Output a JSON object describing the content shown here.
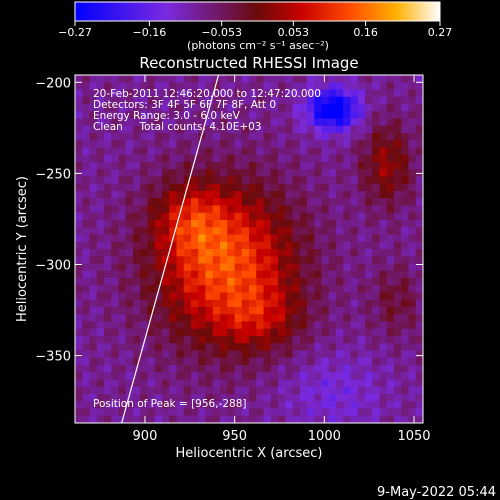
{
  "chart_data": {
    "type": "heatmap",
    "title": "Reconstructed RHESSI Image",
    "xlabel": "Heliocentric X (arcsec)",
    "ylabel": "Heliocentric Y (arcsec)",
    "xlim": [
      861,
      1055
    ],
    "ylim": [
      -387,
      -196
    ],
    "xticks": [
      900,
      950,
      1000,
      1050
    ],
    "yticks": [
      -200,
      -250,
      -300,
      -350
    ],
    "colorbar": {
      "range": [
        -0.27,
        0.27
      ],
      "ticks": [
        -0.27,
        -0.16,
        -0.053,
        0.053,
        0.16,
        0.27
      ],
      "tick_labels": [
        "−0.27",
        "−0.16",
        "−0.053",
        "0.053",
        "0.16",
        "0.27"
      ],
      "unit_label": "(photons cm⁻² s⁻¹ asec⁻²)"
    },
    "annotations": [
      "20-Feb-2011 12:46:20.000 to 12:47:20.000",
      "Detectors: 3F 4F 5F 6F 7F 8F, Att 0",
      "Energy Range: 3.0 - 6.0 keV",
      "Clean     Total counts: 4.10E+03"
    ],
    "peak_label": "Position of Peak = [956,-288]",
    "peak": {
      "x": 956,
      "y": -288,
      "value": 0.27
    },
    "limb_line": {
      "x1": 887,
      "y1": -387,
      "x2": 941,
      "y2": -196
    },
    "sources": [
      {
        "x": 945,
        "y": -300,
        "sx": 28,
        "sy": 30,
        "amp": 0.22
      },
      {
        "x": 925,
        "y": -275,
        "sx": 14,
        "sy": 14,
        "amp": 0.09
      },
      {
        "x": 965,
        "y": -330,
        "sx": 16,
        "sy": 12,
        "amp": 0.07
      },
      {
        "x": 1035,
        "y": -245,
        "sx": 10,
        "sy": 16,
        "amp": 0.11
      },
      {
        "x": 1040,
        "y": -320,
        "sx": 10,
        "sy": 14,
        "amp": 0.06
      },
      {
        "x": 1005,
        "y": -215,
        "sx": 10,
        "sy": 8,
        "amp": -0.22
      },
      {
        "x": 1005,
        "y": -370,
        "sx": 20,
        "sy": 15,
        "amp": -0.05
      }
    ],
    "background": -0.085
  },
  "footer": {
    "date": "9-May-2022 05:44"
  }
}
